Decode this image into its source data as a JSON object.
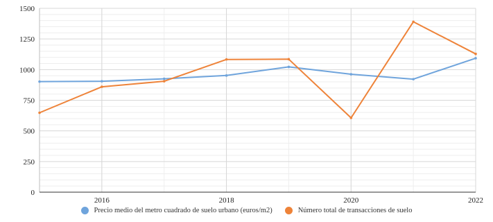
{
  "chart_data": {
    "type": "line",
    "title": "",
    "xlabel": "",
    "ylabel": "",
    "x": [
      2015,
      2016,
      2017,
      2018,
      2019,
      2020,
      2021,
      2022
    ],
    "x_tick_labels": [
      "2016",
      "2018",
      "2020",
      "2022"
    ],
    "y_tick_labels": [
      "0",
      "250",
      "500",
      "750",
      "1000",
      "1250",
      "1500"
    ],
    "xlim": [
      2015,
      2022
    ],
    "ylim": [
      0,
      1500
    ],
    "grid": true,
    "legend_position": "bottom",
    "series": [
      {
        "name": "Precio medio del metro cuadrado de suelo urbano (euros/m2)",
        "color": "#6fa4dc",
        "values": [
          902,
          905,
          925,
          952,
          1022,
          962,
          922,
          1093
        ]
      },
      {
        "name": "Número total de transacciones de suelo",
        "color": "#ee8339",
        "values": [
          648,
          860,
          905,
          1083,
          1085,
          606,
          1390,
          1128
        ]
      }
    ]
  }
}
